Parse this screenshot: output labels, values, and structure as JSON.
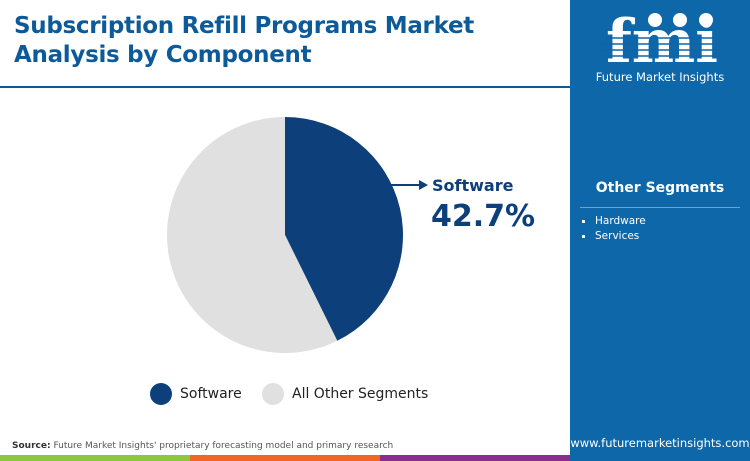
{
  "title_line1": "Subscription Refill Programs Market",
  "title_line2": "Analysis by Component",
  "logo": {
    "text": "fmi",
    "name": "Future Market Insights"
  },
  "other_segments": {
    "title": "Other Segments",
    "items": [
      "Hardware",
      "Services"
    ]
  },
  "source": {
    "label": "Source:",
    "text": "Future Market Insights' proprietary forecasting model and primary research"
  },
  "url": "www.futuremarketinsights.com",
  "colors": {
    "brand": "#0e67a8",
    "software": "#0d3f7a",
    "other": "#e0e0e0",
    "bar_green": "#8dc63f",
    "bar_orange": "#f26522",
    "bar_purple": "#8b2c8f"
  },
  "chart_data": {
    "type": "pie",
    "slices": [
      {
        "label": "Software",
        "value": 42.7,
        "color": "#0d3f7a"
      },
      {
        "label": "All Other Segments",
        "value": 57.3,
        "color": "#e0e0e0"
      }
    ],
    "callout": {
      "label": "Software",
      "value_text": "42.7%"
    },
    "legend": [
      "Software",
      "All Other Segments"
    ],
    "legend_position": "bottom"
  }
}
